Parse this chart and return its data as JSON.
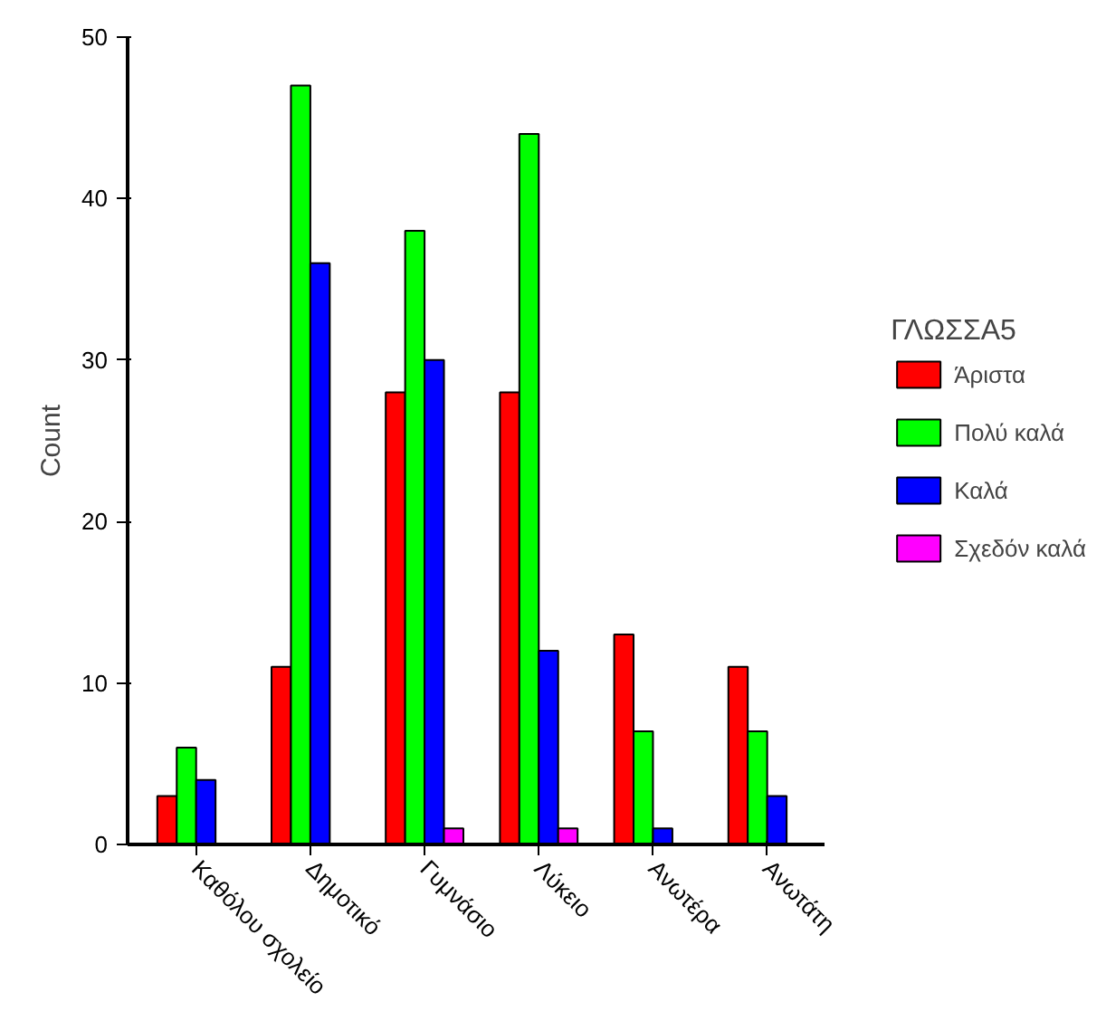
{
  "chart_data": {
    "type": "bar",
    "ylabel": "Count",
    "legend_title": "ΓΛΩΣΣΑ5",
    "categories": [
      "Καθόλου σχολείο",
      "Δημοτικό",
      "Γυμνάσιο",
      "Λύκειο",
      "Ανωτέρα",
      "Ανωτάτη"
    ],
    "series": [
      {
        "name": "Άριστα",
        "color": "#ff0000",
        "values": [
          3,
          11,
          28,
          28,
          13,
          11
        ]
      },
      {
        "name": "Πολύ καλά",
        "color": "#00ff00",
        "values": [
          6,
          47,
          38,
          44,
          7,
          7
        ]
      },
      {
        "name": "Καλά",
        "color": "#0000ff",
        "values": [
          4,
          36,
          30,
          12,
          1,
          3
        ]
      },
      {
        "name": "Σχεδόν καλά",
        "color": "#ff00ff",
        "values": [
          null,
          null,
          1,
          1,
          null,
          null
        ]
      }
    ],
    "ylim": [
      0,
      50
    ],
    "yticks": [
      0,
      10,
      20,
      30,
      40,
      50
    ],
    "legend": "right"
  }
}
